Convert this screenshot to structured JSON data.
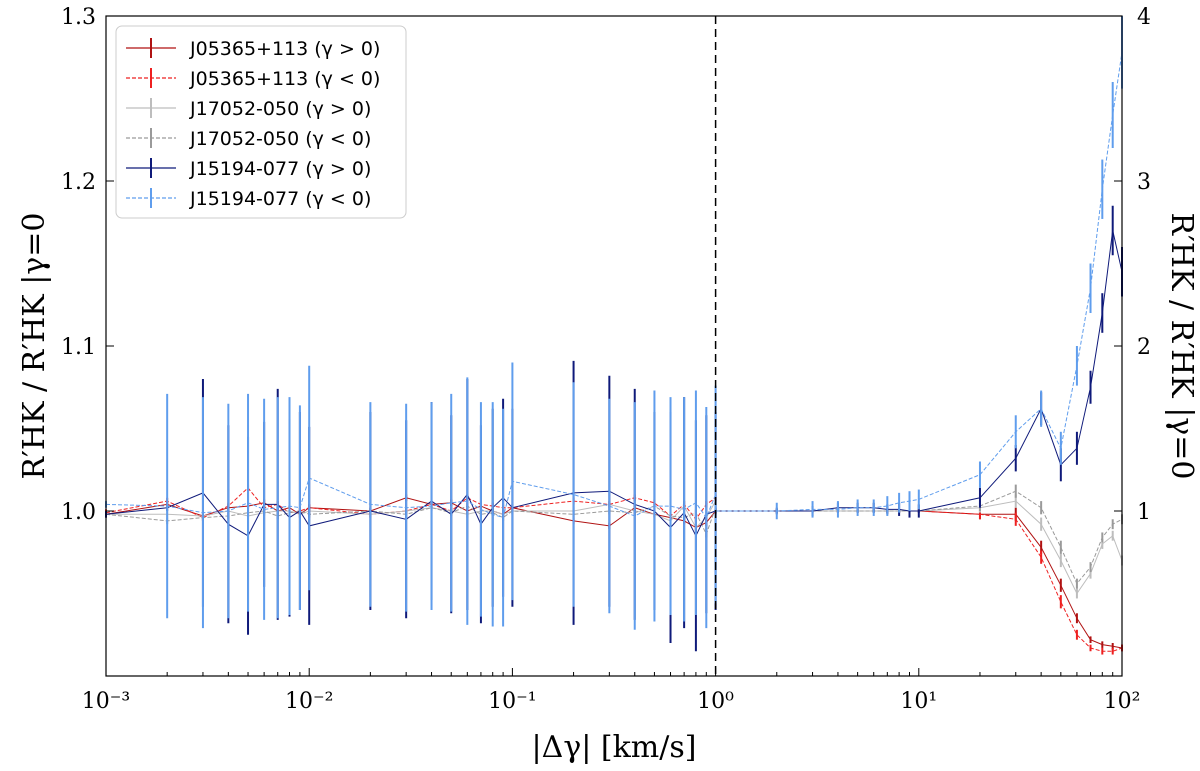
{
  "chart_data": {
    "type": "line",
    "x_axis": {
      "label": "|Δγ| [km/s]",
      "scale": "log",
      "range": [
        0.001,
        100
      ],
      "split_at": 1,
      "tick_labels": [
        "10⁻³",
        "10⁻²",
        "10⁻¹",
        "10⁰",
        "10¹",
        "10²"
      ],
      "tick_values": [
        0.001,
        0.01,
        0.1,
        1,
        10,
        100
      ]
    },
    "y_left": {
      "label": "R′HK / R′HK |γ=0",
      "range": [
        0.9,
        1.3
      ],
      "ticks": [
        "1.0",
        "1.1",
        "1.2",
        "1.3"
      ],
      "tick_values": [
        1.0,
        1.1,
        1.2,
        1.3
      ],
      "applies_to": "x < 1"
    },
    "y_right": {
      "label": "R′HK / R′HK |γ=0",
      "range": [
        0.0,
        4.0
      ],
      "ticks": [
        "1",
        "2",
        "3",
        "4"
      ],
      "tick_values": [
        1,
        2,
        3,
        4
      ],
      "applies_to": "x ≥ 1"
    },
    "divider": {
      "x": 1,
      "style": "dashed"
    },
    "legend": {
      "placement": "top-left",
      "entries": [
        "J05365+113 (γ > 0)",
        "J05365+113 (γ < 0)",
        "J17052-050 (γ > 0)",
        "J17052-050 (γ < 0)",
        "J15194-077 (γ > 0)",
        "J15194-077 (γ < 0)"
      ]
    },
    "x_left": [
      0.001,
      0.002,
      0.003,
      0.004,
      0.005,
      0.006,
      0.007,
      0.008,
      0.009,
      0.01,
      0.02,
      0.03,
      0.04,
      0.05,
      0.06,
      0.07,
      0.08,
      0.09,
      0.1,
      0.2,
      0.3,
      0.4,
      0.5,
      0.6,
      0.7,
      0.8,
      0.9,
      1
    ],
    "x_right": [
      1,
      2,
      3,
      4,
      5,
      6,
      7,
      8,
      9,
      10,
      20,
      30,
      40,
      50,
      60,
      70,
      80,
      90,
      100
    ],
    "series": [
      {
        "name": "J05365+113 (γ > 0)",
        "color": "#b01212",
        "dash": "solid",
        "left": [
          0.998,
          1.004,
          0.997,
          1.002,
          1.003,
          1.005,
          1.0,
          1.002,
          0.998,
          1.002,
          1.0,
          1.008,
          1.004,
          1.005,
          1.0,
          1.003,
          1.0,
          0.998,
          1.002,
          0.994,
          0.991,
          1.002,
          0.998,
          0.996,
          0.994,
          0.99,
          0.993,
          1.0
        ],
        "left_err": [
          0.002,
          0.002,
          0.002,
          0.002,
          0.002,
          0.002,
          0.002,
          0.002,
          0.002,
          0.002,
          0.002,
          0.002,
          0.002,
          0.002,
          0.002,
          0.002,
          0.002,
          0.002,
          0.002,
          0.002,
          0.002,
          0.002,
          0.002,
          0.002,
          0.002,
          0.002,
          0.002,
          0.002
        ],
        "right": [
          1.0,
          1.0,
          1.0,
          1.0,
          1.0,
          1.0,
          1.0,
          1.0,
          1.0,
          1.0,
          0.98,
          0.98,
          0.78,
          0.55,
          0.35,
          0.22,
          0.19,
          0.18,
          0.17
        ],
        "right_err": [
          0.01,
          0.01,
          0.01,
          0.01,
          0.01,
          0.01,
          0.01,
          0.01,
          0.01,
          0.01,
          0.03,
          0.04,
          0.04,
          0.04,
          0.03,
          0.02,
          0.02,
          0.02,
          0.02
        ]
      },
      {
        "name": "J05365+113 (γ < 0)",
        "color": "#ee2020",
        "dash": "dashed",
        "left": [
          0.999,
          1.006,
          0.996,
          1.003,
          1.014,
          1.002,
          1.004,
          0.999,
          1.0,
          1.002,
          0.998,
          1.0,
          1.004,
          1.0,
          1.008,
          1.004,
          1.003,
          1.002,
          1.002,
          1.006,
          1.004,
          1.008,
          1.005,
          0.997,
          1.004,
          0.995,
          1.004,
          1.008
        ],
        "left_err": [
          0.002,
          0.002,
          0.002,
          0.002,
          0.002,
          0.002,
          0.002,
          0.002,
          0.002,
          0.002,
          0.002,
          0.002,
          0.002,
          0.002,
          0.002,
          0.002,
          0.002,
          0.002,
          0.002,
          0.002,
          0.002,
          0.002,
          0.002,
          0.002,
          0.002,
          0.002,
          0.002,
          0.002
        ],
        "right": [
          1.0,
          1.0,
          1.0,
          1.0,
          1.0,
          1.0,
          1.0,
          1.0,
          1.0,
          1.0,
          0.98,
          0.95,
          0.72,
          0.45,
          0.25,
          0.17,
          0.15,
          0.15,
          0.17
        ],
        "right_err": [
          0.01,
          0.01,
          0.01,
          0.01,
          0.01,
          0.01,
          0.01,
          0.01,
          0.01,
          0.01,
          0.03,
          0.04,
          0.04,
          0.04,
          0.03,
          0.02,
          0.02,
          0.02,
          0.02
        ]
      },
      {
        "name": "J17052-050 (γ > 0)",
        "color": "#bdbdbd",
        "dash": "solid",
        "left": [
          0.998,
          0.998,
          0.997,
          1.0,
          0.997,
          0.999,
          1.0,
          1.0,
          0.998,
          1.0,
          0.998,
          1.0,
          1.002,
          1.0,
          0.998,
          1.0,
          1.0,
          0.998,
          1.0,
          1.0,
          1.004,
          1.0,
          0.998,
          0.994,
          1.003,
          0.99,
          0.996,
          1.006
        ],
        "left_err": [
          0.002,
          0.002,
          0.002,
          0.002,
          0.002,
          0.002,
          0.002,
          0.002,
          0.002,
          0.002,
          0.002,
          0.002,
          0.002,
          0.002,
          0.002,
          0.002,
          0.002,
          0.002,
          0.002,
          0.002,
          0.002,
          0.002,
          0.002,
          0.002,
          0.002,
          0.002,
          0.002,
          0.002
        ],
        "right": [
          1.0,
          1.0,
          1.0,
          1.0,
          1.0,
          1.0,
          1.0,
          1.0,
          1.0,
          1.0,
          1.02,
          1.06,
          0.92,
          0.7,
          0.5,
          0.62,
          0.8,
          0.85,
          0.7
        ],
        "right_err": [
          0.01,
          0.01,
          0.01,
          0.01,
          0.01,
          0.01,
          0.01,
          0.01,
          0.01,
          0.01,
          0.03,
          0.04,
          0.04,
          0.04,
          0.03,
          0.03,
          0.03,
          0.03,
          0.03
        ]
      },
      {
        "name": "J17052-050 (γ < 0)",
        "color": "#9a9a9a",
        "dash": "dashed",
        "left": [
          0.998,
          0.994,
          0.996,
          0.997,
          0.999,
          1.0,
          0.997,
          0.999,
          1.0,
          0.998,
          1.0,
          0.998,
          1.002,
          0.999,
          1.003,
          0.998,
          0.999,
          0.996,
          1.0,
          0.998,
          1.0,
          0.999,
          1.003,
          0.997,
          0.996,
          0.999,
          0.986,
          1.002
        ],
        "left_err": [
          0.002,
          0.002,
          0.002,
          0.002,
          0.002,
          0.002,
          0.002,
          0.002,
          0.002,
          0.002,
          0.002,
          0.002,
          0.002,
          0.002,
          0.002,
          0.002,
          0.002,
          0.002,
          0.002,
          0.002,
          0.002,
          0.002,
          0.002,
          0.002,
          0.002,
          0.002,
          0.002,
          0.002
        ],
        "right": [
          1.0,
          1.0,
          1.0,
          1.0,
          1.0,
          1.0,
          1.0,
          1.0,
          1.0,
          1.0,
          1.03,
          1.12,
          1.02,
          0.78,
          0.56,
          0.66,
          0.84,
          0.92,
          0.95
        ],
        "right_err": [
          0.01,
          0.01,
          0.01,
          0.01,
          0.01,
          0.01,
          0.01,
          0.01,
          0.01,
          0.01,
          0.03,
          0.04,
          0.04,
          0.04,
          0.03,
          0.03,
          0.03,
          0.03,
          0.03
        ]
      },
      {
        "name": "J15194-077 (γ > 0)",
        "color": "#0f1a7a",
        "dash": "solid",
        "left": [
          0.998,
          1.002,
          1.011,
          0.992,
          0.985,
          1.004,
          1.004,
          0.996,
          1.0,
          0.991,
          1.0,
          0.995,
          1.006,
          0.998,
          1.01,
          0.992,
          1.002,
          1.008,
          1.002,
          1.011,
          1.012,
          1.004,
          1.0,
          0.99,
          0.999,
          0.985,
          0.998,
          1.0
        ],
        "left_err": [
          0.002,
          0.002,
          0.069,
          0.06,
          0.06,
          0.05,
          0.07,
          0.06,
          0.06,
          0.06,
          0.06,
          0.06,
          0.06,
          0.06,
          0.07,
          0.06,
          0.06,
          0.06,
          0.06,
          0.08,
          0.07,
          0.07,
          0.06,
          0.07,
          0.07,
          0.07,
          0.06,
          0.06
        ],
        "right": [
          1.0,
          1.0,
          1.0,
          1.02,
          1.02,
          1.02,
          1.01,
          1.01,
          1.0,
          1.0,
          1.08,
          1.32,
          1.62,
          1.28,
          1.38,
          1.75,
          2.2,
          2.7,
          2.45
        ],
        "right_err": [
          0.02,
          0.02,
          0.03,
          0.03,
          0.03,
          0.03,
          0.03,
          0.04,
          0.04,
          0.04,
          0.06,
          0.08,
          0.1,
          0.1,
          0.1,
          0.1,
          0.12,
          0.15,
          0.15
        ]
      },
      {
        "name": "J15194-077 (γ < 0)",
        "color": "#5f9ded",
        "dash": "dashed",
        "left": [
          1.004,
          1.003,
          0.999,
          1.0,
          1.005,
          1.001,
          1.002,
          1.003,
          1.002,
          1.02,
          1.004,
          1.002,
          1.003,
          1.005,
          1.006,
          1.001,
          0.998,
          0.996,
          1.018,
          1.01,
          1.003,
          0.997,
          1.003,
          1.003,
          1.001,
          1.005,
          0.996,
          1.01
        ],
        "left_err": [
          0.002,
          0.068,
          0.07,
          0.065,
          0.066,
          0.067,
          0.067,
          0.066,
          0.062,
          0.068,
          0.062,
          0.063,
          0.063,
          0.066,
          0.075,
          0.065,
          0.068,
          0.066,
          0.072,
          0.068,
          0.065,
          0.069,
          0.07,
          0.066,
          0.068,
          0.068,
          0.067,
          0.066
        ],
        "right": [
          1.0,
          1.0,
          1.01,
          1.01,
          1.02,
          1.02,
          1.03,
          1.05,
          1.06,
          1.07,
          1.22,
          1.48,
          1.62,
          1.38,
          1.88,
          2.35,
          2.95,
          3.4,
          3.78
        ],
        "right_err": [
          0.04,
          0.05,
          0.05,
          0.05,
          0.05,
          0.05,
          0.06,
          0.06,
          0.06,
          0.06,
          0.08,
          0.1,
          0.11,
          0.1,
          0.12,
          0.15,
          0.18,
          0.2,
          0.22
        ]
      }
    ]
  }
}
